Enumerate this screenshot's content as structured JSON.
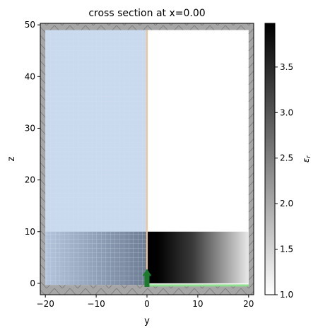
{
  "chart_data": {
    "type": "heatmap",
    "title": "cross section at x=0.00",
    "xlabel": "y",
    "ylabel": "z",
    "xlim": [
      -21,
      21
    ],
    "ylim": [
      -2.2,
      50.3
    ],
    "xticks": [
      -20,
      -10,
      0,
      10,
      20
    ],
    "yticks": [
      0,
      10,
      20,
      30,
      40,
      50
    ],
    "grid": false,
    "colorbar": {
      "label": "ε_r",
      "range": [
        1.0,
        3.98
      ],
      "ticks": [
        1.0,
        1.5,
        2.0,
        2.5,
        3.0,
        3.5
      ],
      "colormap": "white-to-black"
    },
    "regions": [
      {
        "name": "pml-top",
        "y": [
          -21,
          21
        ],
        "z": [
          49,
          50.3
        ],
        "color": "#a6a6a6"
      },
      {
        "name": "pml-bottom",
        "y": [
          -21,
          21
        ],
        "z": [
          -2.2,
          -0.3
        ],
        "color": "#a6a6a6"
      },
      {
        "name": "pml-left",
        "y": [
          -21,
          -20
        ],
        "z": [
          -2.2,
          50.3
        ],
        "color": "#a6a6a6"
      },
      {
        "name": "pml-right",
        "y": [
          20,
          21
        ],
        "z": [
          -2.2,
          50.3
        ],
        "color": "#a6a6a6"
      },
      {
        "name": "slab-gradient",
        "y": [
          0,
          20
        ],
        "z": [
          0,
          10
        ],
        "eps_left": 3.98,
        "eps_right": 1.0
      },
      {
        "name": "monitor-region",
        "y": [
          -20,
          0
        ],
        "z": [
          -0.3,
          49
        ],
        "color": "#aac4e3"
      },
      {
        "name": "source-line",
        "y": [
          0,
          20
        ],
        "z": [
          -0.6,
          -0.2
        ],
        "color": "#90e090"
      },
      {
        "name": "interface-line",
        "y": [
          0,
          0
        ],
        "z": [
          -0.3,
          49
        ],
        "color": "#f4c48c"
      }
    ],
    "source_arrow": {
      "y": 0,
      "z_from": -0.7,
      "z_to": 2.8,
      "color": "#1d7a2d"
    }
  }
}
